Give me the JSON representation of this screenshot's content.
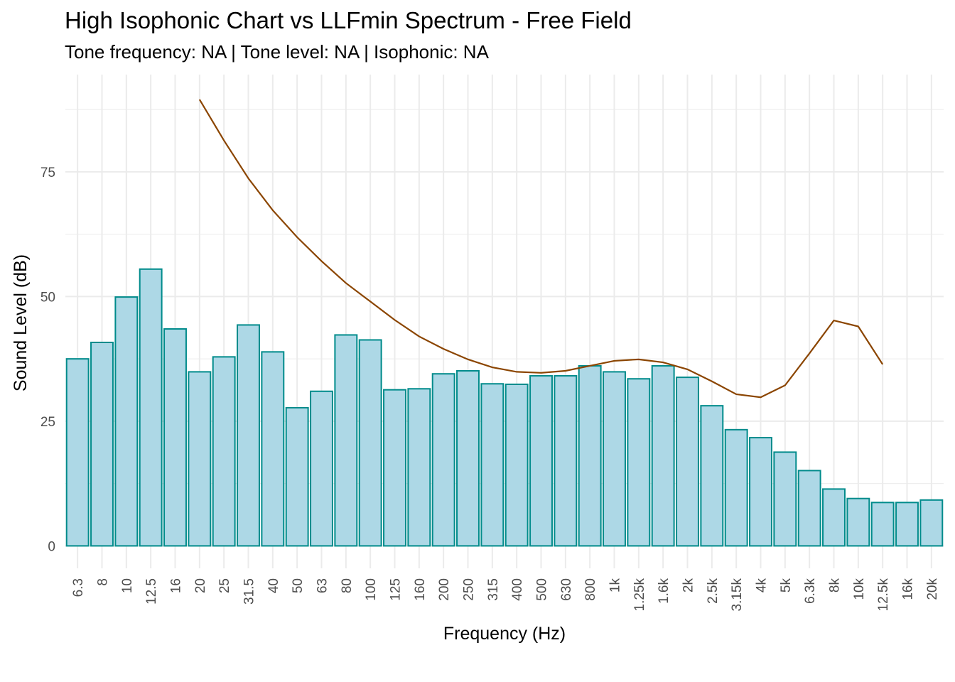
{
  "chart_data": {
    "type": "bar",
    "title": "High Isophonic Chart vs LLFmin Spectrum - Free Field",
    "subtitle": "Tone frequency: NA | Tone level: NA | Isophonic: NA",
    "xlabel": "Frequency (Hz)",
    "ylabel": "Sound Level (dB)",
    "ylim": [
      -4.5,
      94.5
    ],
    "yticks": [
      0,
      25,
      50,
      75
    ],
    "grid": true,
    "categories": [
      "6.3",
      "8",
      "10",
      "12.5",
      "16",
      "20",
      "25",
      "31.5",
      "40",
      "50",
      "63",
      "80",
      "100",
      "125",
      "160",
      "200",
      "250",
      "315",
      "400",
      "500",
      "630",
      "800",
      "1k",
      "1.25k",
      "1.6k",
      "2k",
      "2.5k",
      "3.15k",
      "4k",
      "5k",
      "6.3k",
      "8k",
      "10k",
      "12.5k",
      "16k",
      "20k"
    ],
    "series": [
      {
        "type": "bar",
        "fill": "#add8e6",
        "stroke": "#008b8b",
        "values": [
          37.5,
          40.8,
          49.9,
          55.5,
          43.5,
          34.9,
          37.9,
          44.3,
          38.9,
          27.7,
          31.0,
          42.3,
          41.3,
          31.3,
          31.5,
          34.5,
          35.1,
          32.5,
          32.4,
          34.1,
          34.1,
          36.1,
          34.9,
          33.5,
          36.1,
          33.8,
          28.1,
          23.3,
          21.7,
          18.8,
          15.1,
          11.4,
          9.5,
          8.7,
          8.7,
          9.2
        ]
      },
      {
        "type": "line",
        "color": "#8b4500",
        "values": [
          null,
          null,
          null,
          null,
          null,
          89.5,
          81.3,
          73.7,
          67.3,
          61.9,
          57.1,
          52.7,
          49.0,
          45.3,
          42.0,
          39.5,
          37.4,
          35.8,
          34.9,
          34.7,
          35.1,
          36.1,
          37.1,
          37.4,
          36.8,
          35.4,
          33.0,
          30.4,
          29.8,
          32.2,
          38.6,
          45.2,
          44.0,
          36.4,
          null,
          null
        ]
      }
    ]
  }
}
